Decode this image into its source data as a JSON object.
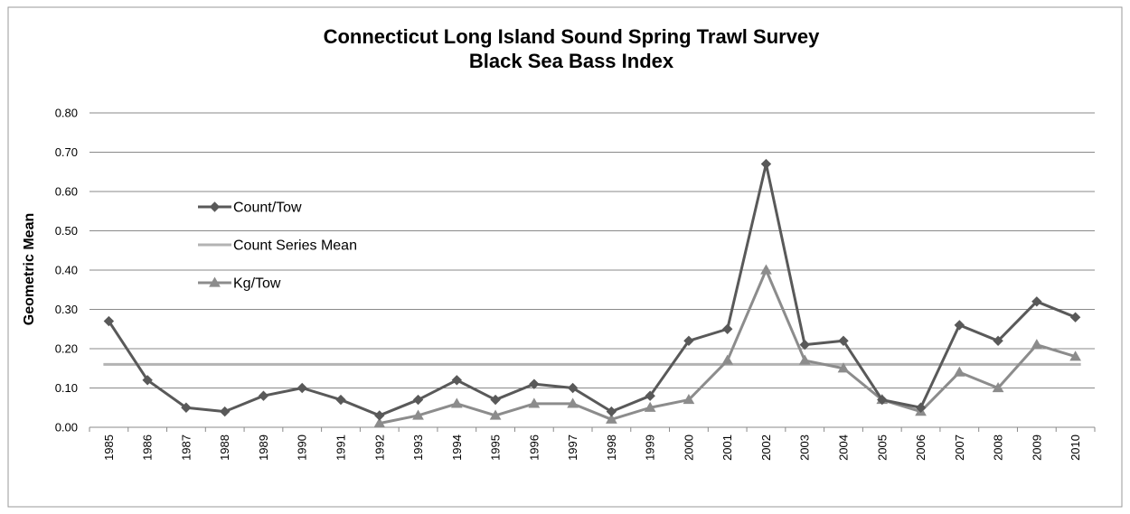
{
  "chart_data": {
    "type": "line",
    "title": "Connecticut Long Island Sound Spring Trawl Survey",
    "subtitle": "Black Sea Bass Index",
    "xlabel": "",
    "ylabel": "Geometric Mean",
    "ylim": [
      0,
      0.8
    ],
    "yticks": [
      "0.00",
      "0.10",
      "0.20",
      "0.30",
      "0.40",
      "0.50",
      "0.60",
      "0.70",
      "0.80"
    ],
    "grid": true,
    "legend_position": "middle-left",
    "categories": [
      "1985",
      "1986",
      "1987",
      "1988",
      "1989",
      "1990",
      "1991",
      "1992",
      "1993",
      "1994",
      "1995",
      "1996",
      "1997",
      "1998",
      "1999",
      "2000",
      "2001",
      "2002",
      "2003",
      "2004",
      "2005",
      "2006",
      "2007",
      "2008",
      "2009",
      "2010"
    ],
    "series": [
      {
        "name": "Count/Tow",
        "color": "#595959",
        "marker": "diamond",
        "values": [
          0.27,
          0.12,
          0.05,
          0.04,
          0.08,
          0.1,
          0.07,
          0.03,
          0.07,
          0.12,
          0.07,
          0.11,
          0.1,
          0.04,
          0.08,
          0.22,
          0.25,
          0.67,
          0.21,
          0.22,
          0.07,
          0.05,
          0.26,
          0.22,
          0.32,
          0.28
        ]
      },
      {
        "name": "Count Series Mean",
        "color": "#b3b3b3",
        "marker": "none",
        "values": [
          0.16,
          0.16,
          0.16,
          0.16,
          0.16,
          0.16,
          0.16,
          0.16,
          0.16,
          0.16,
          0.16,
          0.16,
          0.16,
          0.16,
          0.16,
          0.16,
          0.16,
          0.16,
          0.16,
          0.16,
          0.16,
          0.16,
          0.16,
          0.16,
          0.16,
          0.16
        ]
      },
      {
        "name": "Kg/Tow",
        "color": "#8c8c8c",
        "marker": "triangle",
        "values": [
          null,
          null,
          null,
          null,
          null,
          null,
          null,
          0.01,
          0.03,
          0.06,
          0.03,
          0.06,
          0.06,
          0.02,
          0.05,
          0.07,
          0.17,
          0.4,
          0.17,
          0.15,
          0.07,
          0.04,
          0.14,
          0.1,
          0.21,
          0.18
        ]
      }
    ]
  }
}
